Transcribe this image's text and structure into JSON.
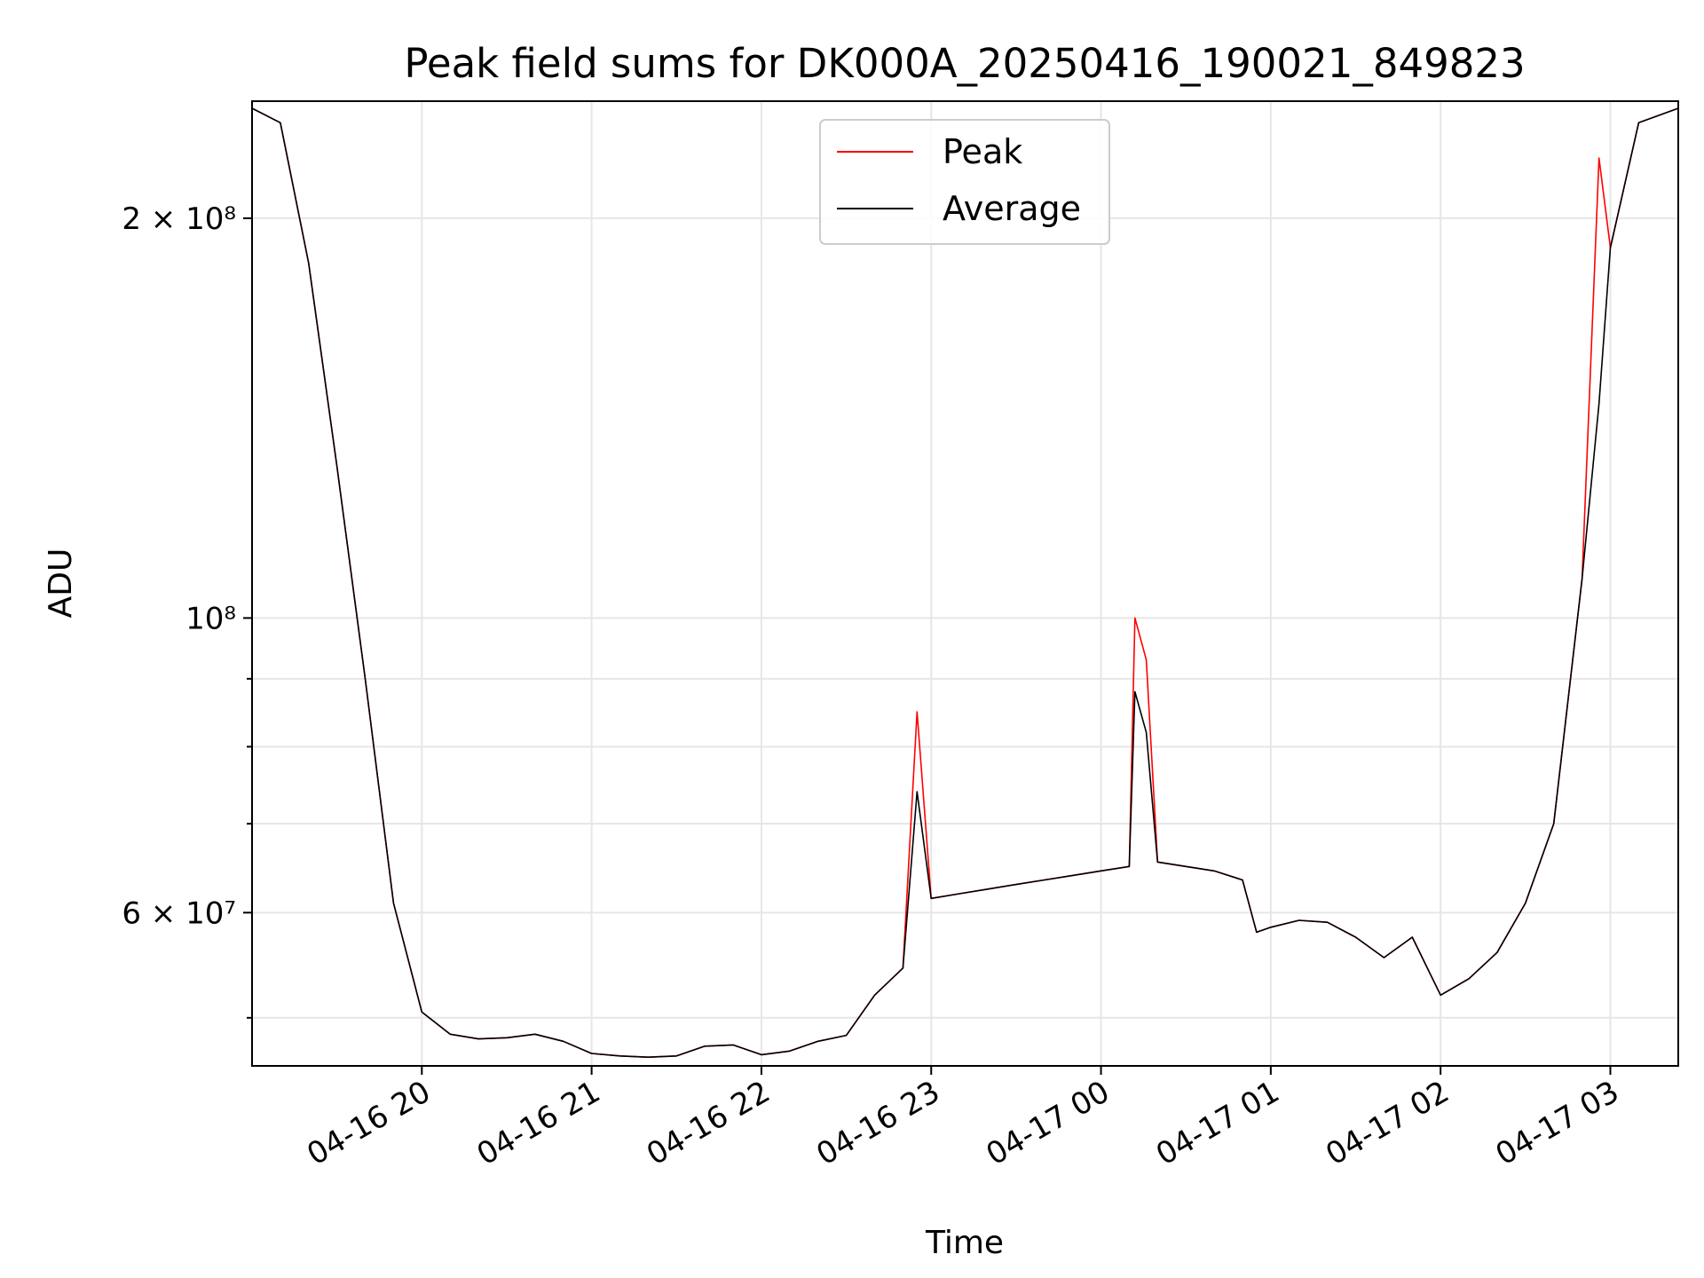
{
  "chart_data": {
    "type": "line",
    "title": "Peak field sums for DK000A_20250416_190021_849823",
    "xlabel": "Time",
    "ylabel": "ADU",
    "x_axis": {
      "type": "time",
      "range": [
        "2025-04-16 19:00",
        "2025-04-17 03:24"
      ],
      "ticks": [
        {
          "value": "2025-04-16 20:00",
          "label": "04-16 20"
        },
        {
          "value": "2025-04-16 21:00",
          "label": "04-16 21"
        },
        {
          "value": "2025-04-16 22:00",
          "label": "04-16 22"
        },
        {
          "value": "2025-04-16 23:00",
          "label": "04-16 23"
        },
        {
          "value": "2025-04-17 00:00",
          "label": "04-17 00"
        },
        {
          "value": "2025-04-17 01:00",
          "label": "04-17 01"
        },
        {
          "value": "2025-04-17 02:00",
          "label": "04-17 02"
        },
        {
          "value": "2025-04-17 03:00",
          "label": "04-17 03"
        }
      ]
    },
    "y_axis": {
      "scale": "log",
      "range": [
        46000000,
        245000000
      ],
      "major_ticks": [
        {
          "value": 60000000,
          "label": "6 × 10⁷"
        },
        {
          "value": 100000000,
          "label": "10⁸"
        },
        {
          "value": 200000000,
          "label": "2 × 10⁸"
        }
      ],
      "minor_ticks": [
        50000000,
        70000000,
        80000000,
        90000000
      ]
    },
    "grid": true,
    "legend_position": "top-center",
    "series": [
      {
        "name": "Peak",
        "color": "#ff0000",
        "points": [
          [
            "2025-04-16 19:00",
            242000000
          ],
          [
            "2025-04-16 19:10",
            236000000
          ],
          [
            "2025-04-16 19:20",
            185000000
          ],
          [
            "2025-04-16 19:30",
            130000000
          ],
          [
            "2025-04-16 19:40",
            90000000
          ],
          [
            "2025-04-16 19:50",
            61000000
          ],
          [
            "2025-04-16 20:00",
            50500000
          ],
          [
            "2025-04-16 20:10",
            48600000
          ],
          [
            "2025-04-16 20:20",
            48200000
          ],
          [
            "2025-04-16 20:30",
            48300000
          ],
          [
            "2025-04-16 20:40",
            48600000
          ],
          [
            "2025-04-16 20:50",
            48000000
          ],
          [
            "2025-04-16 21:00",
            47000000
          ],
          [
            "2025-04-16 21:10",
            46800000
          ],
          [
            "2025-04-16 21:20",
            46700000
          ],
          [
            "2025-04-16 21:30",
            46800000
          ],
          [
            "2025-04-16 21:40",
            47600000
          ],
          [
            "2025-04-16 21:50",
            47700000
          ],
          [
            "2025-04-16 22:00",
            46900000
          ],
          [
            "2025-04-16 22:10",
            47200000
          ],
          [
            "2025-04-16 22:20",
            48000000
          ],
          [
            "2025-04-16 22:30",
            48500000
          ],
          [
            "2025-04-16 22:40",
            52000000
          ],
          [
            "2025-04-16 22:50",
            54500000
          ],
          [
            "2025-04-16 22:55",
            85000000
          ],
          [
            "2025-04-16 23:00",
            61500000
          ],
          [
            "2025-04-16 23:10",
            62000000
          ],
          [
            "2025-04-16 23:20",
            62500000
          ],
          [
            "2025-04-16 23:30",
            63000000
          ],
          [
            "2025-04-16 23:40",
            63500000
          ],
          [
            "2025-04-16 23:50",
            64000000
          ],
          [
            "2025-04-17 00:00",
            64500000
          ],
          [
            "2025-04-17 00:10",
            65000000
          ],
          [
            "2025-04-17 00:12",
            100000000
          ],
          [
            "2025-04-17 00:16",
            93000000
          ],
          [
            "2025-04-17 00:20",
            65500000
          ],
          [
            "2025-04-17 00:30",
            65000000
          ],
          [
            "2025-04-17 00:40",
            64500000
          ],
          [
            "2025-04-17 00:50",
            63500000
          ],
          [
            "2025-04-17 00:55",
            58000000
          ],
          [
            "2025-04-17 01:00",
            58500000
          ],
          [
            "2025-04-17 01:10",
            59200000
          ],
          [
            "2025-04-17 01:20",
            59000000
          ],
          [
            "2025-04-17 01:30",
            57500000
          ],
          [
            "2025-04-17 01:40",
            55500000
          ],
          [
            "2025-04-17 01:50",
            57500000
          ],
          [
            "2025-04-17 02:00",
            52000000
          ],
          [
            "2025-04-17 02:10",
            53500000
          ],
          [
            "2025-04-17 02:20",
            56000000
          ],
          [
            "2025-04-17 02:30",
            61000000
          ],
          [
            "2025-04-17 02:40",
            70000000
          ],
          [
            "2025-04-17 02:50",
            107000000
          ],
          [
            "2025-04-17 02:56",
            222000000
          ],
          [
            "2025-04-17 03:00",
            190000000
          ],
          [
            "2025-04-17 03:10",
            236000000
          ],
          [
            "2025-04-17 03:24",
            242000000
          ]
        ]
      },
      {
        "name": "Average",
        "color": "#000000",
        "points": [
          [
            "2025-04-16 19:00",
            242000000
          ],
          [
            "2025-04-16 19:10",
            236000000
          ],
          [
            "2025-04-16 19:20",
            185000000
          ],
          [
            "2025-04-16 19:30",
            130000000
          ],
          [
            "2025-04-16 19:40",
            90000000
          ],
          [
            "2025-04-16 19:50",
            61000000
          ],
          [
            "2025-04-16 20:00",
            50500000
          ],
          [
            "2025-04-16 20:10",
            48600000
          ],
          [
            "2025-04-16 20:20",
            48200000
          ],
          [
            "2025-04-16 20:30",
            48300000
          ],
          [
            "2025-04-16 20:40",
            48600000
          ],
          [
            "2025-04-16 20:50",
            48000000
          ],
          [
            "2025-04-16 21:00",
            47000000
          ],
          [
            "2025-04-16 21:10",
            46800000
          ],
          [
            "2025-04-16 21:20",
            46700000
          ],
          [
            "2025-04-16 21:30",
            46800000
          ],
          [
            "2025-04-16 21:40",
            47600000
          ],
          [
            "2025-04-16 21:50",
            47700000
          ],
          [
            "2025-04-16 22:00",
            46900000
          ],
          [
            "2025-04-16 22:10",
            47200000
          ],
          [
            "2025-04-16 22:20",
            48000000
          ],
          [
            "2025-04-16 22:30",
            48500000
          ],
          [
            "2025-04-16 22:40",
            52000000
          ],
          [
            "2025-04-16 22:50",
            54500000
          ],
          [
            "2025-04-16 22:55",
            74000000
          ],
          [
            "2025-04-16 23:00",
            61500000
          ],
          [
            "2025-04-16 23:10",
            62000000
          ],
          [
            "2025-04-16 23:20",
            62500000
          ],
          [
            "2025-04-16 23:30",
            63000000
          ],
          [
            "2025-04-16 23:40",
            63500000
          ],
          [
            "2025-04-16 23:50",
            64000000
          ],
          [
            "2025-04-17 00:00",
            64500000
          ],
          [
            "2025-04-17 00:10",
            65000000
          ],
          [
            "2025-04-17 00:12",
            88000000
          ],
          [
            "2025-04-17 00:16",
            82000000
          ],
          [
            "2025-04-17 00:20",
            65500000
          ],
          [
            "2025-04-17 00:30",
            65000000
          ],
          [
            "2025-04-17 00:40",
            64500000
          ],
          [
            "2025-04-17 00:50",
            63500000
          ],
          [
            "2025-04-17 00:55",
            58000000
          ],
          [
            "2025-04-17 01:00",
            58500000
          ],
          [
            "2025-04-17 01:10",
            59200000
          ],
          [
            "2025-04-17 01:20",
            59000000
          ],
          [
            "2025-04-17 01:30",
            57500000
          ],
          [
            "2025-04-17 01:40",
            55500000
          ],
          [
            "2025-04-17 01:50",
            57500000
          ],
          [
            "2025-04-17 02:00",
            52000000
          ],
          [
            "2025-04-17 02:10",
            53500000
          ],
          [
            "2025-04-17 02:20",
            56000000
          ],
          [
            "2025-04-17 02:30",
            61000000
          ],
          [
            "2025-04-17 02:40",
            70000000
          ],
          [
            "2025-04-17 02:50",
            107000000
          ],
          [
            "2025-04-17 02:56",
            145000000
          ],
          [
            "2025-04-17 03:00",
            190000000
          ],
          [
            "2025-04-17 03:10",
            236000000
          ],
          [
            "2025-04-17 03:24",
            242000000
          ]
        ]
      }
    ]
  }
}
